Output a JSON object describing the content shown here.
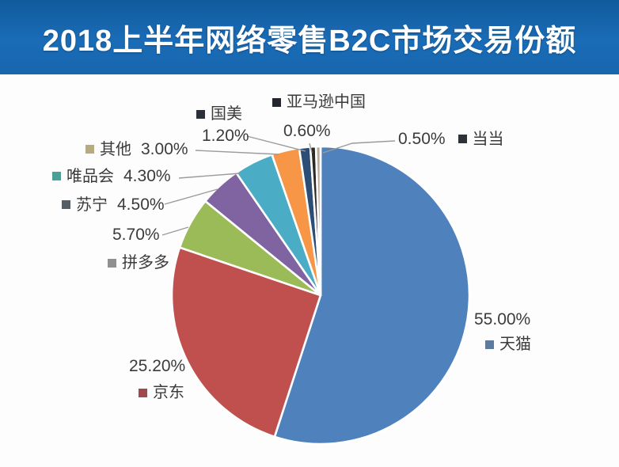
{
  "title": "2018上半年网络零售B2C市场交易份额",
  "colors": {
    "header_bg": "#1766ae",
    "header_text": "#ffffff",
    "background": "#fdfdfd",
    "leader_line": "#9b9b9b",
    "label_text": "#3b3b3b",
    "pie_stroke": "#ffffff"
  },
  "chart_data": {
    "type": "pie",
    "title": "2018上半年网络零售B2C市场交易份额",
    "start_angle_deg": 0,
    "direction": "clockwise",
    "legend_position": "callout-labels",
    "total": 100.0,
    "segments": [
      {
        "key": "tmall",
        "label": "天猫",
        "value": 55.0,
        "value_label": "55.00%",
        "color": "#4f81bd",
        "marker_color": "#5b7ba3"
      },
      {
        "key": "jd",
        "label": "京东",
        "value": 25.2,
        "value_label": "25.20%",
        "color": "#c0504d",
        "marker_color": "#a0484e"
      },
      {
        "key": "pinduoduo",
        "label": "拼多多",
        "value": 5.7,
        "value_label": "5.70%",
        "color": "#9bbb59",
        "marker_color": "#90908e"
      },
      {
        "key": "suning",
        "label": "苏宁",
        "value": 4.5,
        "value_label": "4.50%",
        "color": "#8064a2",
        "marker_color": "#555d66"
      },
      {
        "key": "vipshop",
        "label": "唯品会",
        "value": 4.3,
        "value_label": "4.30%",
        "color": "#4bacc6",
        "marker_color": "#4a9f96"
      },
      {
        "key": "others",
        "label": "其他",
        "value": 3.0,
        "value_label": "3.00%",
        "color": "#f79646",
        "marker_color": "#b5aa80"
      },
      {
        "key": "gome",
        "label": "国美",
        "value": 1.2,
        "value_label": "1.20%",
        "color": "#2c4d75",
        "marker_color": "#2a2f3a"
      },
      {
        "key": "amazon-china",
        "label": "亚马逊中国",
        "value": 0.6,
        "value_label": "0.60%",
        "color": "#2b2826",
        "marker_color": "#23262e"
      },
      {
        "key": "dangdang",
        "label": "当当",
        "value": 0.5,
        "value_label": "0.50%",
        "color": "#bcab94",
        "marker_color": "#2e3138"
      }
    ]
  }
}
